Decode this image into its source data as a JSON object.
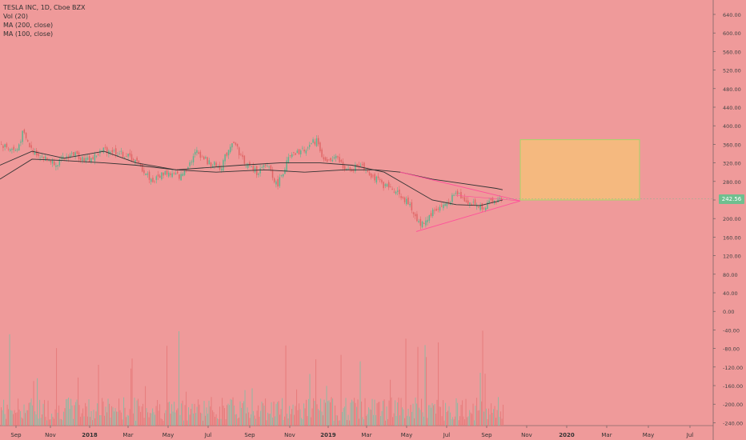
{
  "legend": {
    "symbol": "TESLA INC, 1D, Cboe BZX",
    "vol": "Vol (20)",
    "ma200": "MA (200, close)",
    "ma100": "MA (100, close)"
  },
  "last_price": "242.56",
  "colors": {
    "background": "#ef9a9a",
    "up": "#5db38e",
    "down": "#e06666",
    "ma": "#333333",
    "target_fill": "#f5b97f",
    "target_border": "#a5d66a",
    "triangle": "#ff4f9a"
  },
  "chart_data": {
    "type": "candlestick",
    "yaxis": {
      "ticks": [
        "640.00",
        "600.00",
        "560.00",
        "520.00",
        "480.00",
        "440.00",
        "400.00",
        "360.00",
        "320.00",
        "280.00",
        "240.00",
        "200.00",
        "160.00",
        "120.00",
        "80.00",
        "40.00",
        "0.00",
        "-40.00",
        "-80.00",
        "-120.00",
        "-160.00",
        "-200.00",
        "-240.00"
      ],
      "range": [
        -240,
        640
      ]
    },
    "xaxis": {
      "ticks": [
        "Sep",
        "Nov",
        "2018",
        "Mar",
        "May",
        "Jul",
        "Sep",
        "Nov",
        "2019",
        "Mar",
        "May",
        "Jul",
        "Sep",
        "Nov",
        "2020",
        "Mar",
        "May",
        "Jul"
      ]
    },
    "price_path": [
      [
        0,
        360
      ],
      [
        20,
        345
      ],
      [
        28,
        385
      ],
      [
        38,
        350
      ],
      [
        55,
        330
      ],
      [
        70,
        320
      ],
      [
        90,
        340
      ],
      [
        110,
        325
      ],
      [
        130,
        350
      ],
      [
        150,
        340
      ],
      [
        165,
        330
      ],
      [
        180,
        300
      ],
      [
        190,
        280
      ],
      [
        205,
        300
      ],
      [
        225,
        290
      ],
      [
        245,
        345
      ],
      [
        260,
        320
      ],
      [
        275,
        310
      ],
      [
        290,
        370
      ],
      [
        305,
        320
      ],
      [
        320,
        300
      ],
      [
        335,
        315
      ],
      [
        345,
        270
      ],
      [
        360,
        330
      ],
      [
        380,
        350
      ],
      [
        395,
        370
      ],
      [
        405,
        320
      ],
      [
        420,
        330
      ],
      [
        435,
        300
      ],
      [
        450,
        320
      ],
      [
        465,
        290
      ],
      [
        480,
        270
      ],
      [
        495,
        260
      ],
      [
        510,
        230
      ],
      [
        525,
        185
      ],
      [
        540,
        215
      ],
      [
        555,
        230
      ],
      [
        570,
        255
      ],
      [
        585,
        235
      ],
      [
        600,
        225
      ],
      [
        615,
        235
      ],
      [
        628,
        245
      ]
    ],
    "ma200": [
      [
        0,
        285
      ],
      [
        40,
        328
      ],
      [
        80,
        325
      ],
      [
        130,
        320
      ],
      [
        170,
        315
      ],
      [
        220,
        305
      ],
      [
        270,
        300
      ],
      [
        330,
        305
      ],
      [
        380,
        300
      ],
      [
        430,
        305
      ],
      [
        470,
        305
      ],
      [
        500,
        300
      ],
      [
        540,
        285
      ],
      [
        580,
        275
      ],
      [
        620,
        265
      ],
      [
        628,
        262
      ]
    ],
    "ma100": [
      [
        0,
        315
      ],
      [
        40,
        345
      ],
      [
        80,
        330
      ],
      [
        130,
        345
      ],
      [
        170,
        320
      ],
      [
        220,
        305
      ],
      [
        260,
        310
      ],
      [
        300,
        315
      ],
      [
        350,
        320
      ],
      [
        400,
        320
      ],
      [
        440,
        315
      ],
      [
        480,
        300
      ],
      [
        510,
        270
      ],
      [
        540,
        240
      ],
      [
        570,
        230
      ],
      [
        600,
        228
      ],
      [
        628,
        240
      ]
    ],
    "target_zone": {
      "price_high": 370,
      "price_low": 240,
      "from": "Nov",
      "to": "Mar"
    }
  }
}
